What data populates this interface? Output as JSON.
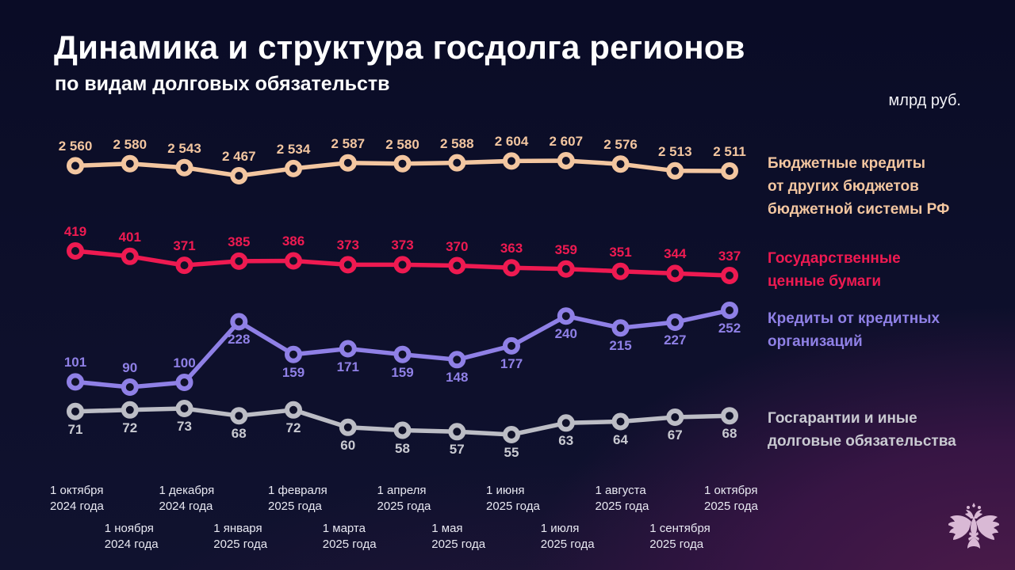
{
  "title": "Динамика и структура госдолга регионов",
  "subtitle": "по видам долговых обязательств",
  "units_label": "млрд руб.",
  "colors": {
    "background_navy": "#0b0d27",
    "background_purple_glow": "#4d1b4a",
    "title_text": "#ffffff",
    "axis_text": "#e9e9f2",
    "logo": "#d9b9d5"
  },
  "chart_data": {
    "type": "line",
    "title": "Динамика и структура госдолга регионов по видам долговых обязательств",
    "ylabel": "млрд руб.",
    "grid": false,
    "legend_position": "right",
    "categories": [
      [
        "1 октября",
        "2024 года"
      ],
      [
        "1 ноября",
        "2024 года"
      ],
      [
        "1 декабря",
        "2024 года"
      ],
      [
        "1 января",
        "2025 года"
      ],
      [
        "1 февраля",
        "2025 года"
      ],
      [
        "1 марта",
        "2025 года"
      ],
      [
        "1 апреля",
        "2025 года"
      ],
      [
        "1 мая",
        "2025 года"
      ],
      [
        "1 июня",
        "2025 года"
      ],
      [
        "1 июля",
        "2025 года"
      ],
      [
        "1 августа",
        "2025 года"
      ],
      [
        "1 сентября",
        "2025 года"
      ],
      [
        "1 октября",
        "2025 года"
      ]
    ],
    "series": [
      {
        "name": "Бюджетные кредиты от других бюджетов бюджетной системы РФ",
        "legend_lines": [
          "Бюджетные кредиты",
          "от других бюджетов",
          "бюджетной системы РФ"
        ],
        "color": "#f3c6a0",
        "values": [
          2560,
          2580,
          2543,
          2467,
          2534,
          2587,
          2580,
          2588,
          2604,
          2607,
          2576,
          2513,
          2511
        ],
        "label_side": "above"
      },
      {
        "name": "Государственные ценные бумаги",
        "legend_lines": [
          "Государственные",
          "ценные бумаги"
        ],
        "color": "#ee1a51",
        "values": [
          419,
          401,
          371,
          385,
          386,
          373,
          373,
          370,
          363,
          359,
          351,
          344,
          337
        ],
        "label_side": "above"
      },
      {
        "name": "Кредиты от кредитных организаций",
        "legend_lines": [
          "Кредиты от кредитных",
          "организаций"
        ],
        "color": "#8f80e6",
        "values": [
          101,
          90,
          100,
          228,
          159,
          171,
          159,
          148,
          177,
          240,
          215,
          227,
          252
        ],
        "label_side": [
          "above",
          "above",
          "above",
          "below",
          "below",
          "below",
          "below",
          "below",
          "below",
          "below",
          "below",
          "below",
          "below"
        ]
      },
      {
        "name": "Госгарантии и иные долговые обязательства",
        "legend_lines": [
          "Госгарантии и иные",
          "долговые обязательства"
        ],
        "color": "#bcbdc5",
        "label_color": "#c9cad1",
        "values": [
          71,
          72,
          73,
          68,
          72,
          60,
          58,
          57,
          55,
          63,
          64,
          67,
          68
        ],
        "label_side": "below"
      }
    ]
  }
}
